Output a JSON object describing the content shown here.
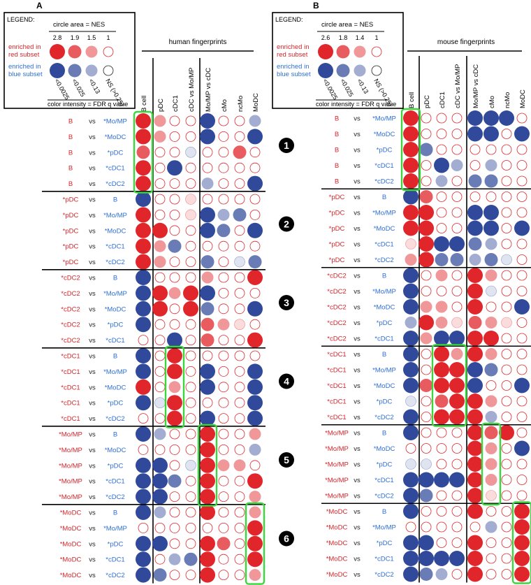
{
  "colors": {
    "red": "#e0262b",
    "blue": "#30499a",
    "text_red": "#d6252b",
    "text_blue": "#2f6fd6",
    "green": "#3cd63c",
    "ns_ring": "#e0262b",
    "faint_ring": "#5a68b0"
  },
  "legend_text": {
    "title": "LEGEND:",
    "circle_area": "circle area = NES",
    "enriched_red": "enriched in\nred subset",
    "enriched_blue": "enriched in\nblue subset",
    "color_intensity": "color intensity = FDR q value",
    "fdr_labels": [
      "<0.0025",
      "<0.025",
      "<0.13",
      "NS (>0.25)"
    ]
  },
  "panels": [
    {
      "id": "A",
      "label": "A",
      "fingerprint_title": "human fingerprints",
      "nes_values": [
        "2.8",
        "1.9",
        "1.5",
        "1"
      ],
      "columns": [
        "B cell",
        "pDC",
        "cDC1",
        "cDC vs Mo/MP",
        "Mo/MP vs cDC",
        "cMo",
        "ncMo",
        "MoDC"
      ],
      "group_numbers": [],
      "rows": [
        {
          "left": "B",
          "vs": "vs",
          "right": "*Mo/MP",
          "cells": [
            "r4",
            "r2",
            "e",
            "e",
            "b4",
            "e",
            "e",
            "b2"
          ]
        },
        {
          "left": "B",
          "vs": "vs",
          "right": "*MoDC",
          "cells": [
            "r4",
            "r2",
            "e",
            "e",
            "b4",
            "e",
            "e",
            "b4"
          ]
        },
        {
          "left": "B",
          "vs": "vs",
          "right": "*pDC",
          "cells": [
            "r3",
            "e",
            "e",
            "b1",
            "e",
            "e",
            "r3",
            "e"
          ]
        },
        {
          "left": "B",
          "vs": "vs",
          "right": "*cDC1",
          "cells": [
            "r4",
            "e",
            "b4",
            "e",
            "e",
            "e",
            "e",
            "e"
          ]
        },
        {
          "left": "B",
          "vs": "vs",
          "right": "*cDC2",
          "cells": [
            "r4",
            "e",
            "e",
            "e",
            "b2",
            "e",
            "e",
            "b4"
          ]
        },
        {
          "left": "*pDC",
          "vs": "vs",
          "right": "B",
          "cells": [
            "b4",
            "e",
            "e",
            "r1",
            "e",
            "e",
            "e",
            "e"
          ]
        },
        {
          "left": "*pDC",
          "vs": "vs",
          "right": "*Mo/MP",
          "cells": [
            "r4",
            "e",
            "e",
            "r1",
            "b4",
            "b2",
            "b3",
            "e"
          ]
        },
        {
          "left": "*pDC",
          "vs": "vs",
          "right": "*MoDC",
          "cells": [
            "r4",
            "r4",
            "e",
            "e",
            "b4",
            "b3",
            "e",
            "b4"
          ]
        },
        {
          "left": "*pDC",
          "vs": "vs",
          "right": "*cDC1",
          "cells": [
            "r4",
            "r2",
            "b3",
            "e",
            "e",
            "e",
            "e",
            "e"
          ]
        },
        {
          "left": "*pDC",
          "vs": "vs",
          "right": "*cDC2",
          "cells": [
            "r4",
            "r2",
            "e",
            "e",
            "b3",
            "e",
            "b1",
            "b3"
          ]
        },
        {
          "left": "*cDC2",
          "vs": "vs",
          "right": "B",
          "cells": [
            "b4",
            "e",
            "e",
            "e",
            "r2",
            "e",
            "e",
            "r4"
          ]
        },
        {
          "left": "*cDC2",
          "vs": "vs",
          "right": "*Mo/MP",
          "cells": [
            "b4",
            "r4",
            "r2",
            "r4",
            "b4",
            "e",
            "e",
            "e"
          ]
        },
        {
          "left": "*cDC2",
          "vs": "vs",
          "right": "*MoDC",
          "cells": [
            "b4",
            "r4",
            "e",
            "r4",
            "b3",
            "e",
            "e",
            "b4"
          ]
        },
        {
          "left": "*cDC2",
          "vs": "vs",
          "right": "*pDC",
          "cells": [
            "b4",
            "e",
            "e",
            "e",
            "r3",
            "r2",
            "r1",
            "e"
          ]
        },
        {
          "left": "*cDC2",
          "vs": "vs",
          "right": "*cDC1",
          "cells": [
            "e",
            "e",
            "b4",
            "e",
            "r3",
            "e",
            "e",
            "r4"
          ]
        },
        {
          "left": "*cDC1",
          "vs": "vs",
          "right": "B",
          "cells": [
            "b4",
            "e",
            "r4",
            "e",
            "e",
            "e",
            "e",
            "e"
          ]
        },
        {
          "left": "*cDC1",
          "vs": "vs",
          "right": "*Mo/MP",
          "cells": [
            "b4",
            "e",
            "r4",
            "e",
            "b4",
            "e",
            "e",
            "b4"
          ]
        },
        {
          "left": "*cDC1",
          "vs": "vs",
          "right": "*MoDC",
          "cells": [
            "r4",
            "e",
            "r2",
            "e",
            "b4",
            "e",
            "e",
            "b4"
          ]
        },
        {
          "left": "*cDC1",
          "vs": "vs",
          "right": "*pDC",
          "cells": [
            "b4",
            "b1",
            "r4",
            "e",
            "e",
            "e",
            "e",
            "b4"
          ]
        },
        {
          "left": "*cDC1",
          "vs": "vs",
          "right": "*cDC2",
          "cells": [
            "e",
            "e",
            "r4",
            "e",
            "b4",
            "e",
            "e",
            "b4"
          ]
        },
        {
          "left": "*Mo/MP",
          "vs": "vs",
          "right": "B",
          "cells": [
            "b4",
            "b2",
            "e",
            "e",
            "r4",
            "e",
            "e",
            "r2"
          ]
        },
        {
          "left": "*Mo/MP",
          "vs": "vs",
          "right": "*MoDC",
          "cells": [
            "e",
            "e",
            "e",
            "e",
            "r4",
            "e",
            "e",
            "b2"
          ]
        },
        {
          "left": "*Mo/MP",
          "vs": "vs",
          "right": "*pDC",
          "cells": [
            "b4",
            "b4",
            "e",
            "b1",
            "r4",
            "r2",
            "r2",
            "e"
          ]
        },
        {
          "left": "*Mo/MP",
          "vs": "vs",
          "right": "*cDC1",
          "cells": [
            "b4",
            "b4",
            "b3",
            "e",
            "r4",
            "e",
            "e",
            "r4"
          ]
        },
        {
          "left": "*Mo/MP",
          "vs": "vs",
          "right": "*cDC2",
          "cells": [
            "b4",
            "b4",
            "e",
            "e",
            "r4",
            "e",
            "e",
            "r2"
          ]
        },
        {
          "left": "*MoDC",
          "vs": "vs",
          "right": "B",
          "cells": [
            "b4",
            "b2",
            "e",
            "e",
            "r4",
            "e",
            "e",
            "r2"
          ]
        },
        {
          "left": "*MoDC",
          "vs": "vs",
          "right": "*Mo/MP",
          "cells": [
            "e",
            "e",
            "e",
            "e",
            "e",
            "e",
            "e",
            "r4"
          ]
        },
        {
          "left": "*MoDC",
          "vs": "vs",
          "right": "*pDC",
          "cells": [
            "b4",
            "b4",
            "e",
            "e",
            "r4",
            "r3",
            "e",
            "r4"
          ]
        },
        {
          "left": "*MoDC",
          "vs": "vs",
          "right": "*cDC1",
          "cells": [
            "b4",
            "e",
            "b2",
            "b3",
            "r4",
            "e",
            "e",
            "r4"
          ]
        },
        {
          "left": "*MoDC",
          "vs": "vs",
          "right": "*cDC2",
          "cells": [
            "b4",
            "b3",
            "e",
            "e",
            "r4",
            "e",
            "e",
            "r2"
          ]
        }
      ]
    },
    {
      "id": "B",
      "label": "B",
      "fingerprint_title": "mouse fingerprints",
      "nes_values": [
        "2.6",
        "1.8",
        "1.4",
        "1"
      ],
      "columns": [
        "B cell",
        "pDC",
        "cDC1",
        "cDC vs Mo/MP",
        "Mo/MP vs cDC",
        "cMo",
        "ncMo",
        "MoDC"
      ],
      "group_numbers": [
        "1",
        "2",
        "3",
        "4",
        "5",
        "6"
      ],
      "rows": [
        {
          "left": "B",
          "vs": "vs",
          "right": "*Mo/MP",
          "cells": [
            "r4",
            "e",
            "e",
            "e",
            "b4",
            "b4",
            "b4",
            "e"
          ]
        },
        {
          "left": "B",
          "vs": "vs",
          "right": "*MoDC",
          "cells": [
            "r4",
            "e",
            "e",
            "e",
            "b4",
            "b4",
            "e",
            "b4"
          ]
        },
        {
          "left": "B",
          "vs": "vs",
          "right": "*pDC",
          "cells": [
            "r4",
            "b3",
            "e",
            "e",
            "e",
            "e",
            "e",
            "e"
          ]
        },
        {
          "left": "B",
          "vs": "vs",
          "right": "*cDC1",
          "cells": [
            "r4",
            "e",
            "b4",
            "b2",
            "e",
            "b2",
            "e",
            "e"
          ]
        },
        {
          "left": "B",
          "vs": "vs",
          "right": "*cDC2",
          "cells": [
            "r4",
            "e",
            "b2",
            "e",
            "b3",
            "b3",
            "e",
            "e"
          ]
        },
        {
          "left": "*pDC",
          "vs": "vs",
          "right": "B",
          "cells": [
            "b4",
            "r3",
            "e",
            "e",
            "e",
            "e",
            "e",
            "e"
          ]
        },
        {
          "left": "*pDC",
          "vs": "vs",
          "right": "*Mo/MP",
          "cells": [
            "r4",
            "r4",
            "e",
            "e",
            "b4",
            "b4",
            "e",
            "e"
          ]
        },
        {
          "left": "*pDC",
          "vs": "vs",
          "right": "*MoDC",
          "cells": [
            "r4",
            "r4",
            "e",
            "e",
            "b4",
            "b4",
            "e",
            "b4"
          ]
        },
        {
          "left": "*pDC",
          "vs": "vs",
          "right": "*cDC1",
          "cells": [
            "r1",
            "r4",
            "b4",
            "b4",
            "b3",
            "b2",
            "e",
            "e"
          ]
        },
        {
          "left": "*pDC",
          "vs": "vs",
          "right": "*cDC2",
          "cells": [
            "r2",
            "r4",
            "b3",
            "b3",
            "b2",
            "b3",
            "b1",
            "e"
          ]
        },
        {
          "left": "*cDC2",
          "vs": "vs",
          "right": "B",
          "cells": [
            "b4",
            "e",
            "r2",
            "e",
            "r4",
            "r2",
            "e",
            "e"
          ]
        },
        {
          "left": "*cDC2",
          "vs": "vs",
          "right": "*Mo/MP",
          "cells": [
            "b4",
            "e",
            "e",
            "e",
            "r4",
            "b1",
            "e",
            "e"
          ]
        },
        {
          "left": "*cDC2",
          "vs": "vs",
          "right": "*MoDC",
          "cells": [
            "b4",
            "r2",
            "r2",
            "e",
            "r4",
            "e",
            "e",
            "b4"
          ]
        },
        {
          "left": "*cDC2",
          "vs": "vs",
          "right": "*pDC",
          "cells": [
            "b2",
            "r4",
            "r2",
            "r1",
            "r3",
            "r2",
            "r1",
            "e"
          ]
        },
        {
          "left": "*cDC2",
          "vs": "vs",
          "right": "*cDC1",
          "cells": [
            "b4",
            "r2",
            "b4",
            "b4",
            "r4",
            "r4",
            "e",
            "e"
          ]
        },
        {
          "left": "*cDC1",
          "vs": "vs",
          "right": "B",
          "cells": [
            "b4",
            "e",
            "r4",
            "r2",
            "r4",
            "r2",
            "e",
            "e"
          ]
        },
        {
          "left": "*cDC1",
          "vs": "vs",
          "right": "*Mo/MP",
          "cells": [
            "b4",
            "e",
            "r4",
            "r4",
            "b4",
            "b3",
            "e",
            "e"
          ]
        },
        {
          "left": "*cDC1",
          "vs": "vs",
          "right": "*MoDC",
          "cells": [
            "b4",
            "r3",
            "r4",
            "r4",
            "b4",
            "e",
            "e",
            "b4"
          ]
        },
        {
          "left": "*cDC1",
          "vs": "vs",
          "right": "*pDC",
          "cells": [
            "b1",
            "e",
            "r3",
            "r4",
            "r4",
            "r2",
            "e",
            "e"
          ]
        },
        {
          "left": "*cDC1",
          "vs": "vs",
          "right": "*cDC2",
          "cells": [
            "b4",
            "e",
            "r4",
            "r4",
            "r4",
            "b2",
            "e",
            "e"
          ]
        },
        {
          "left": "*Mo/MP",
          "vs": "vs",
          "right": "B",
          "cells": [
            "b4",
            "e",
            "e",
            "e",
            "r4",
            "r3",
            "r4",
            "e"
          ]
        },
        {
          "left": "*Mo/MP",
          "vs": "vs",
          "right": "*MoDC",
          "cells": [
            "e",
            "e",
            "e",
            "e",
            "r4",
            "r2",
            "e",
            "b4"
          ]
        },
        {
          "left": "*Mo/MP",
          "vs": "vs",
          "right": "*pDC",
          "cells": [
            "b1",
            "b1",
            "e",
            "e",
            "r4",
            "r2",
            "e",
            "e"
          ]
        },
        {
          "left": "*Mo/MP",
          "vs": "vs",
          "right": "*cDC1",
          "cells": [
            "b4",
            "b4",
            "b4",
            "b4",
            "r4",
            "r2",
            "e",
            "e"
          ]
        },
        {
          "left": "*Mo/MP",
          "vs": "vs",
          "right": "*cDC2",
          "cells": [
            "b4",
            "b3",
            "e",
            "e",
            "r4",
            "r1",
            "e",
            "e"
          ]
        },
        {
          "left": "*MoDC",
          "vs": "vs",
          "right": "B",
          "cells": [
            "b4",
            "e",
            "e",
            "e",
            "r4",
            "e",
            "e",
            "r4"
          ]
        },
        {
          "left": "*MoDC",
          "vs": "vs",
          "right": "*Mo/MP",
          "cells": [
            "e",
            "e",
            "e",
            "e",
            "e",
            "b2",
            "e",
            "r4"
          ]
        },
        {
          "left": "*MoDC",
          "vs": "vs",
          "right": "*pDC",
          "cells": [
            "b4",
            "b4",
            "e",
            "e",
            "r4",
            "e",
            "e",
            "r4"
          ]
        },
        {
          "left": "*MoDC",
          "vs": "vs",
          "right": "*cDC1",
          "cells": [
            "b4",
            "b4",
            "b4",
            "b4",
            "r4",
            "e",
            "e",
            "r4"
          ]
        },
        {
          "left": "*MoDC",
          "vs": "vs",
          "right": "*cDC2",
          "cells": [
            "b4",
            "b3",
            "b2",
            "e",
            "r4",
            "e",
            "e",
            "r4"
          ]
        }
      ]
    }
  ]
}
